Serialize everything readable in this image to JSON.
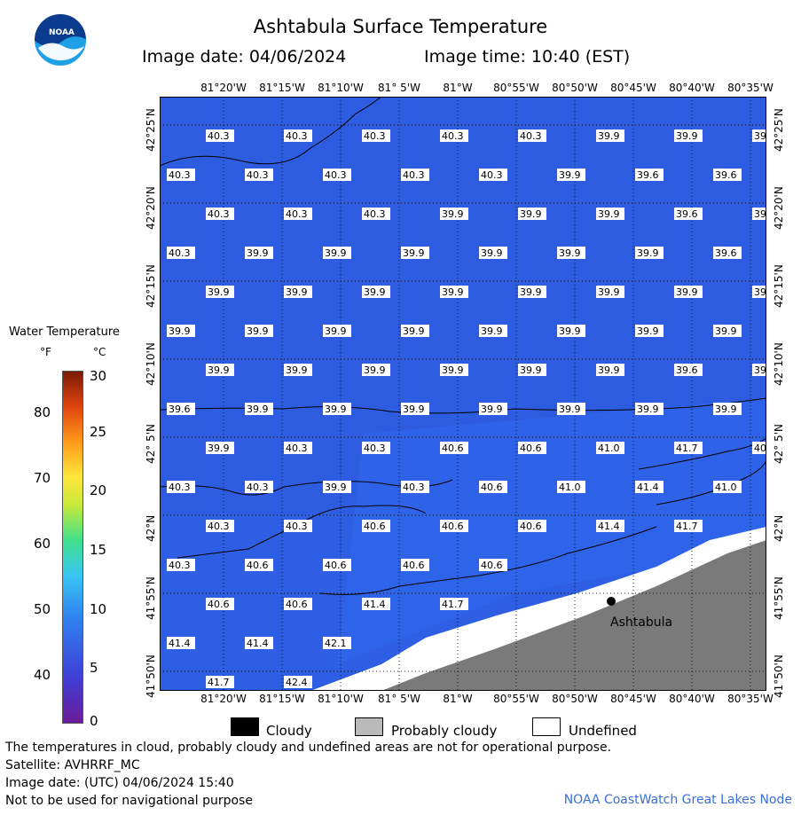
{
  "header": {
    "title": "Ashtabula Surface Temperature",
    "image_date": "Image date: 04/06/2024",
    "image_time": "Image time: 10:40 (EST)"
  },
  "logo": {
    "text": "NOAA",
    "colors": {
      "dark": "#0b3b8c",
      "light": "#1fa0e6"
    }
  },
  "legend": {
    "title": "Water Temperature",
    "unit_f": "°F",
    "unit_c": "°C",
    "f_ticks": [
      "80",
      "70",
      "60",
      "50",
      "40"
    ],
    "c_ticks": [
      "30",
      "25",
      "20",
      "15",
      "10",
      "5",
      "0"
    ]
  },
  "map": {
    "lon_labels": [
      "81°20'W",
      "81°15'W",
      "81°10'W",
      "81° 5'W",
      "81°W",
      "80°55'W",
      "80°50'W",
      "80°45'W",
      "80°40'W",
      "80°35'W"
    ],
    "lat_labels": [
      "42°25'N",
      "42°20'N",
      "42°15'N",
      "42°10'N",
      "42° 5'N",
      "42°N",
      "41°55'N",
      "41°50'N"
    ],
    "city_label": "Ashtabula",
    "colors": {
      "water": "#2d5ee3",
      "land": "#7a7a7a",
      "undefined": "#ffffff"
    },
    "temp_rows": [
      [
        "40.3",
        "40.3",
        "40.3",
        "40.3",
        "40.3",
        "39.9",
        "39.9",
        "39"
      ],
      [
        "40.3",
        "40.3",
        "40.3",
        "40.3",
        "40.3",
        "39.9",
        "39.6",
        "39.6"
      ],
      [
        "40.3",
        "40.3",
        "40.3",
        "39.9",
        "39.9",
        "39.9",
        "39.6",
        "39"
      ],
      [
        "40.3",
        "39.9",
        "39.9",
        "39.9",
        "39.9",
        "39.9",
        "39.9",
        "39.6"
      ],
      [
        "39.9",
        "39.9",
        "39.9",
        "39.9",
        "39.9",
        "39.9",
        "39.9",
        "39"
      ],
      [
        "39.9",
        "39.9",
        "39.9",
        "39.9",
        "39.9",
        "39.9",
        "39.9",
        "39.9"
      ],
      [
        "39.9",
        "39.9",
        "39.9",
        "39.9",
        "39.9",
        "39.9",
        "39.6",
        "39"
      ],
      [
        "39.6",
        "39.9",
        "39.9",
        "39.9",
        "39.9",
        "39.9",
        "39.9",
        "39.9"
      ],
      [
        "39.9",
        "40.3",
        "40.3",
        "40.6",
        "40.6",
        "41.0",
        "41.7",
        "40"
      ],
      [
        "40.3",
        "40.3",
        "39.9",
        "40.3",
        "40.6",
        "41.0",
        "41.4",
        "41.0"
      ],
      [
        "40.3",
        "40.3",
        "40.6",
        "40.6",
        "40.6",
        "41.4",
        "41.7"
      ],
      [
        "40.3",
        "40.6",
        "40.6",
        "40.6",
        "40.6"
      ],
      [
        "40.6",
        "40.6",
        "41.4",
        "41.7"
      ],
      [
        "41.4",
        "41.4",
        "42.1"
      ],
      [
        "41.7",
        "42.4"
      ]
    ]
  },
  "key": {
    "cloudy": "Cloudy",
    "probably_cloudy": "Probably cloudy",
    "undefined": "Undefined"
  },
  "footer": {
    "line1": "The temperatures in cloud, probably cloudy and undefined areas are not for operational purpose.",
    "line2": "Satellite: AVHRRF_MC",
    "line3": "Image date: (UTC) 04/06/2024  15:40",
    "line4": "Not to be used for navigational purpose",
    "credit": "NOAA CoastWatch Great Lakes Node"
  }
}
